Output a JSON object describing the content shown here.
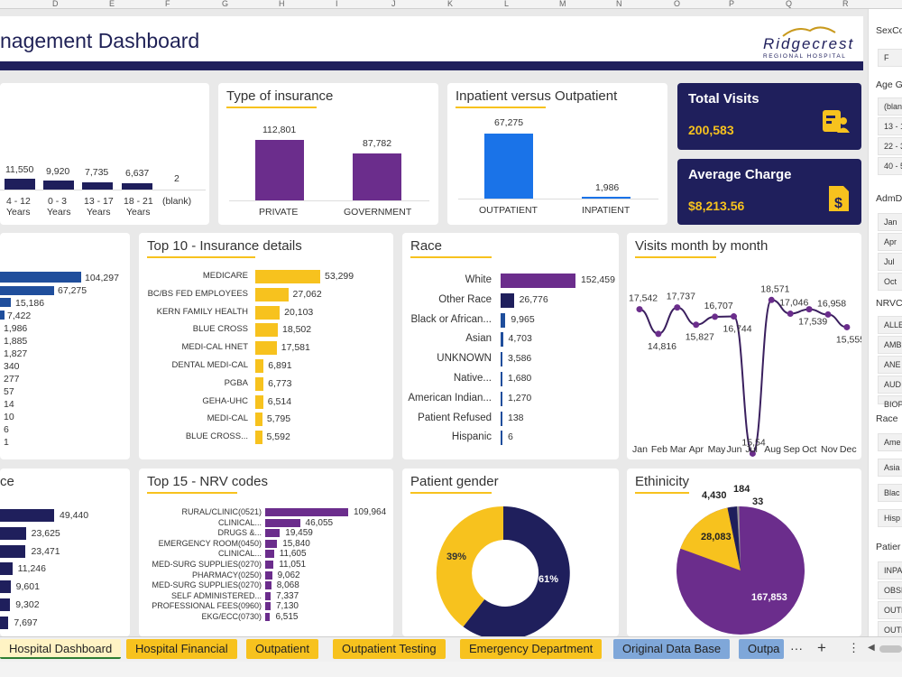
{
  "column_headers": [
    "D",
    "E",
    "F",
    "G",
    "H",
    "I",
    "J",
    "K",
    "L",
    "M",
    "N",
    "O",
    "P",
    "Q",
    "R"
  ],
  "dashboard_title": "nagement Dashboard",
  "logo": {
    "line1": "Ridgecrest",
    "line2": "REGIONAL HOSPITAL"
  },
  "colors": {
    "navy": "#1f1f5c",
    "gold": "#f7c21e",
    "purple": "#6b2d8c",
    "blue": "#1a73e8",
    "blue_dark": "#1f4e9c"
  },
  "age_chart": {
    "values": [
      "11,550",
      "9,920",
      "7,735",
      "6,637",
      "2"
    ],
    "labels": [
      "4 - 12\nYears",
      "0 - 3\nYears",
      "13 - 17\nYears",
      "18 - 21\nYears",
      "(blank)"
    ],
    "label_line1": [
      "4 - 12",
      "0 - 3",
      "13 - 17",
      "18 - 21",
      "(blank)"
    ],
    "label_line2": [
      "Years",
      "Years",
      "Years",
      "Years",
      ""
    ]
  },
  "insurance_type": {
    "title": "Type of insurance",
    "categories": [
      "PRIVATE",
      "GOVERNMENT"
    ],
    "values": [
      "112,801",
      "87,782"
    ]
  },
  "inpatient_outpatient": {
    "title": "Inpatient versus Outpatient",
    "categories": [
      "OUTPATIENT",
      "INPATIENT"
    ],
    "values": [
      "67,275",
      "1,986"
    ]
  },
  "kpi": {
    "total_visits_label": "Total Visits",
    "total_visits_value": "200,583",
    "avg_charge_label": "Average Charge",
    "avg_charge_value": "$8,213.56"
  },
  "left_mid_values": [
    "104,297",
    "67,275",
    "15,186",
    "7,422",
    "1,986",
    "1,885",
    "1,827",
    "340",
    "277",
    "57",
    "14",
    "10",
    "6",
    "1"
  ],
  "top10_insurance": {
    "title": "Top 10 - Insurance details",
    "categories": [
      "MEDICARE",
      "BC/BS FED EMPLOYEES",
      "KERN FAMILY HEALTH",
      "BLUE CROSS",
      "MEDI-CAL HNET",
      "DENTAL MEDI-CAL",
      "PGBA",
      "GEHA-UHC",
      "MEDI-CAL",
      "BLUE CROSS..."
    ],
    "values": [
      "53,299",
      "27,062",
      "20,103",
      "18,502",
      "17,581",
      "6,891",
      "6,773",
      "6,514",
      "5,795",
      "5,592"
    ]
  },
  "race": {
    "title": "Race",
    "categories": [
      "White",
      "Other Race",
      "Black or African...",
      "Asian",
      "UNKNOWN",
      "Native...",
      "American Indian...",
      "Patient Refused",
      "Hispanic"
    ],
    "values": [
      "152,459",
      "26,776",
      "9,965",
      "4,703",
      "3,586",
      "1,680",
      "1,270",
      "138",
      "6"
    ]
  },
  "visits_month": {
    "title": "Visits month by month",
    "months": [
      "Jan",
      "Feb",
      "Mar",
      "Apr",
      "May",
      "Jun",
      "Jul",
      "Aug",
      "Sep",
      "Oct",
      "Nov",
      "Dec"
    ],
    "labels": [
      "17,542",
      "14,816",
      "17,737",
      "15,827",
      "16,707",
      "16,744",
      "15,54",
      "18,571",
      "17,046",
      "17,539",
      "16,958",
      "15,555"
    ]
  },
  "left_bottom": {
    "title": "ce",
    "values": [
      "49,440",
      "23,625",
      "23,471",
      "11,246",
      "9,601",
      "9,302",
      "7,697"
    ]
  },
  "top15_nrv": {
    "title": "Top 15 - NRV codes",
    "categories": [
      "RURAL/CLINIC(0521)",
      "CLINICAL...",
      "DRUGS &...",
      "EMERGENCY ROOM(0450)",
      "CLINICAL...",
      "MED-SURG SUPPLIES(0270)",
      "PHARMACY(0250)",
      "MED-SURG SUPPLIES(0270)",
      "SELF ADMINISTERED...",
      "PROFESSIONAL FEES(0960)",
      "EKG/ECC(0730)"
    ],
    "values": [
      "109,964",
      "46,055",
      "19,459",
      "15,840",
      "11,605",
      "11,051",
      "9,062",
      "8,068",
      "7,337",
      "7,130",
      "6,515"
    ]
  },
  "gender": {
    "title": "Patient gender",
    "slices": [
      {
        "label": "61%",
        "value": 61
      },
      {
        "label": "39%",
        "value": 39
      }
    ]
  },
  "ethnicity": {
    "title": "Ethinicity",
    "values": [
      "167,853",
      "28,083",
      "4,430",
      "184",
      "33"
    ]
  },
  "slicers": {
    "sex_title": "SexCo",
    "sex_items": [
      "F"
    ],
    "age_title": "Age G",
    "age_items": [
      "(blan",
      "13 - 1",
      "22 - 3",
      "40 - 5"
    ],
    "adm_title": "AdmD",
    "adm_items": [
      "Jan",
      "Apr",
      "Jul",
      "Oct"
    ],
    "nrv_title": "NRVC",
    "nrv_items": [
      "ALLE",
      "AMB",
      "ANE",
      "AUD",
      "BIOP"
    ],
    "race_title": "Race",
    "race_items": [
      "Ame",
      "Asia",
      "Blac",
      "Hisp"
    ],
    "pat_title": "Patier",
    "pat_items": [
      "INPA",
      "OBSE",
      "OUTF",
      "OUTF"
    ]
  },
  "tabs": [
    "Hospital Dashboard",
    "Hospital Financial",
    "Outpatient",
    "Outpatient Testing",
    "Emergency Department",
    "Original Data Base",
    "Outpa"
  ]
}
